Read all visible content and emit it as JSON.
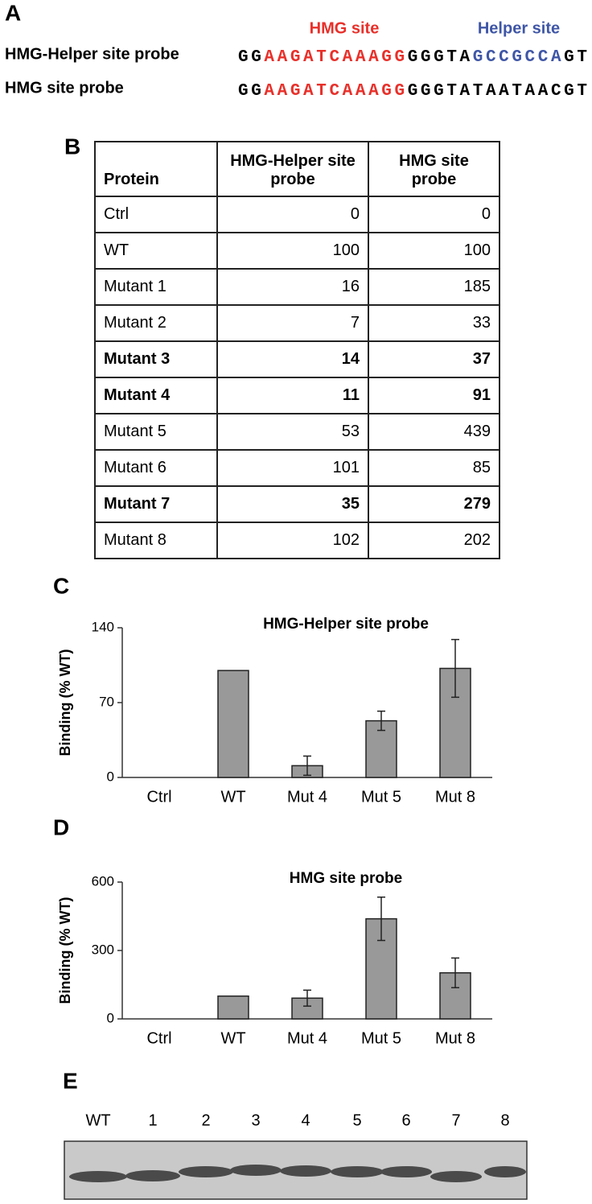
{
  "panel_a": {
    "letter": "A",
    "hmg_site": "HMG site",
    "helper_site": "Helper site",
    "probes": [
      {
        "label": "HMG-Helper site probe",
        "sequence": [
          {
            "text": "GG",
            "color": "#000000"
          },
          {
            "text": "AAGATCAAAGG",
            "color": "#e8302a"
          },
          {
            "text": "GGGTA",
            "color": "#000000"
          },
          {
            "text": "GCCGCCA",
            "color": "#3f56a6"
          },
          {
            "text": "GT",
            "color": "#000000"
          }
        ]
      },
      {
        "label": "HMG site probe",
        "sequence": [
          {
            "text": "GG",
            "color": "#000000"
          },
          {
            "text": "AAGATCAAAGG",
            "color": "#e8302a"
          },
          {
            "text": "GGGTATAATAACGT",
            "color": "#000000"
          }
        ]
      }
    ]
  },
  "table": {
    "letter": "B",
    "header": [
      "Protein",
      "HMG-Helper site probe",
      "HMG site probe"
    ],
    "rows": [
      [
        "Ctrl",
        "0",
        "0"
      ],
      [
        "WT",
        "100",
        "100"
      ],
      [
        "Mutant 1",
        "16",
        "185"
      ],
      [
        "Mutant 2",
        "7",
        "33"
      ],
      [
        "Mutant 3",
        "14",
        "37"
      ],
      [
        "Mutant 4",
        "11",
        "91"
      ],
      [
        "Mutant 5",
        "53",
        "439"
      ],
      [
        "Mutant 6",
        "101",
        "85"
      ],
      [
        "Mutant 7",
        "35",
        "279"
      ],
      [
        "Mutant 8",
        "102",
        "202"
      ]
    ]
  },
  "chart_data": [
    {
      "type": "bar",
      "letter": "C",
      "title": "HMG-Helper site probe",
      "y_label": "Binding (% WT)",
      "categories": [
        "Ctrl",
        "WT",
        "Mut 4",
        "Mut 5",
        "Mut 8"
      ],
      "values": [
        0,
        100,
        11,
        53,
        102
      ],
      "errors": [
        null,
        null,
        9,
        9,
        27
      ],
      "color": "#999999",
      "ylim": [
        0,
        140
      ],
      "yticks": [
        0,
        70,
        140
      ]
    },
    {
      "type": "bar",
      "letter": "D",
      "title": "HMG site probe",
      "y_label": "Binding (% WT)",
      "categories": [
        "Ctrl",
        "WT",
        "Mut 4",
        "Mut 5",
        "Mut 8"
      ],
      "values": [
        0,
        100,
        91,
        439,
        202
      ],
      "errors": [
        null,
        null,
        35,
        95,
        65
      ],
      "color": "#999999",
      "ylim": [
        0,
        600
      ],
      "yticks": [
        0,
        300,
        600
      ]
    }
  ],
  "panel_e": {
    "letter": "E",
    "lanes": [
      "WT",
      "1",
      "2",
      "3",
      "4",
      "5",
      "6",
      "7",
      "8"
    ]
  }
}
